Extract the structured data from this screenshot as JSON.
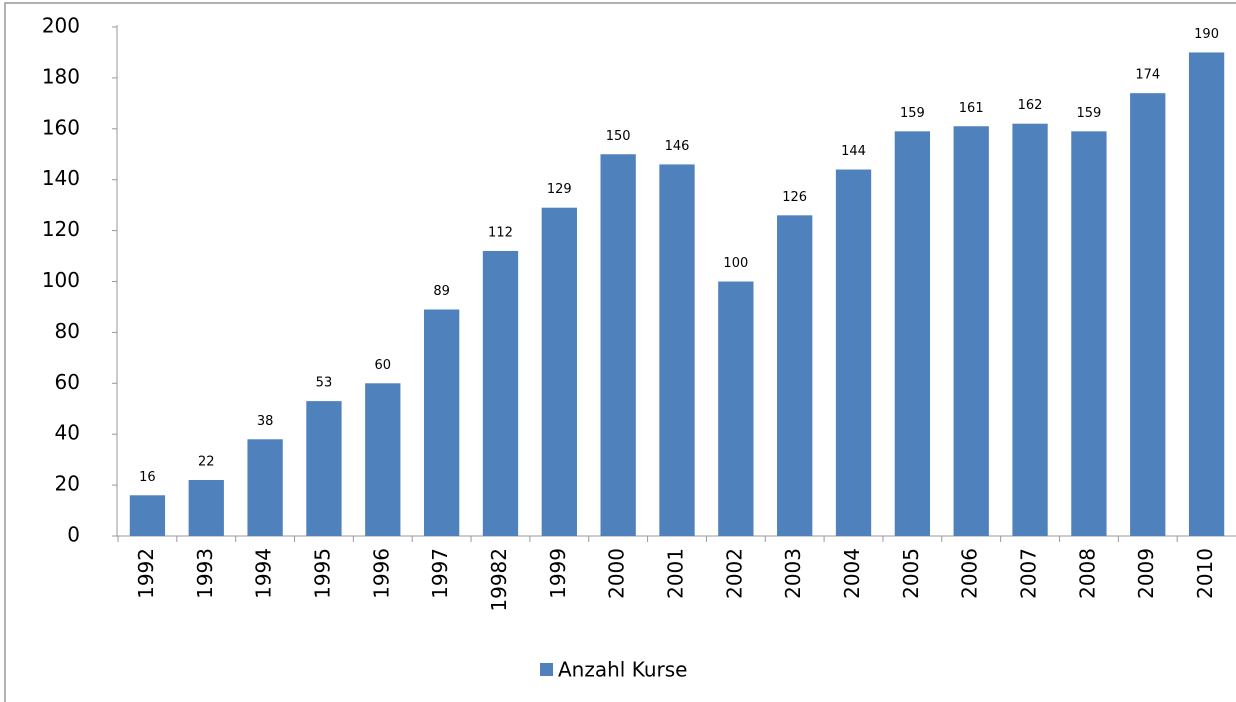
{
  "chart_data": {
    "type": "bar",
    "categories": [
      "1992",
      "1993",
      "1994",
      "1995",
      "1996",
      "1997",
      "19982",
      "1999",
      "2000",
      "2001",
      "2002",
      "2003",
      "2004",
      "2005",
      "2006",
      "2007",
      "2008",
      "2009",
      "2010"
    ],
    "series": [
      {
        "name": "Anzahl Kurse",
        "color": "#4f81bd",
        "values": [
          16,
          22,
          38,
          53,
          60,
          89,
          112,
          129,
          150,
          146,
          100,
          126,
          144,
          159,
          161,
          162,
          159,
          174,
          190
        ]
      }
    ],
    "ylim": [
      0,
      200
    ],
    "yticks": [
      0,
      20,
      40,
      60,
      80,
      100,
      120,
      140,
      160,
      180,
      200
    ],
    "grid": false,
    "legend": "bottom"
  }
}
